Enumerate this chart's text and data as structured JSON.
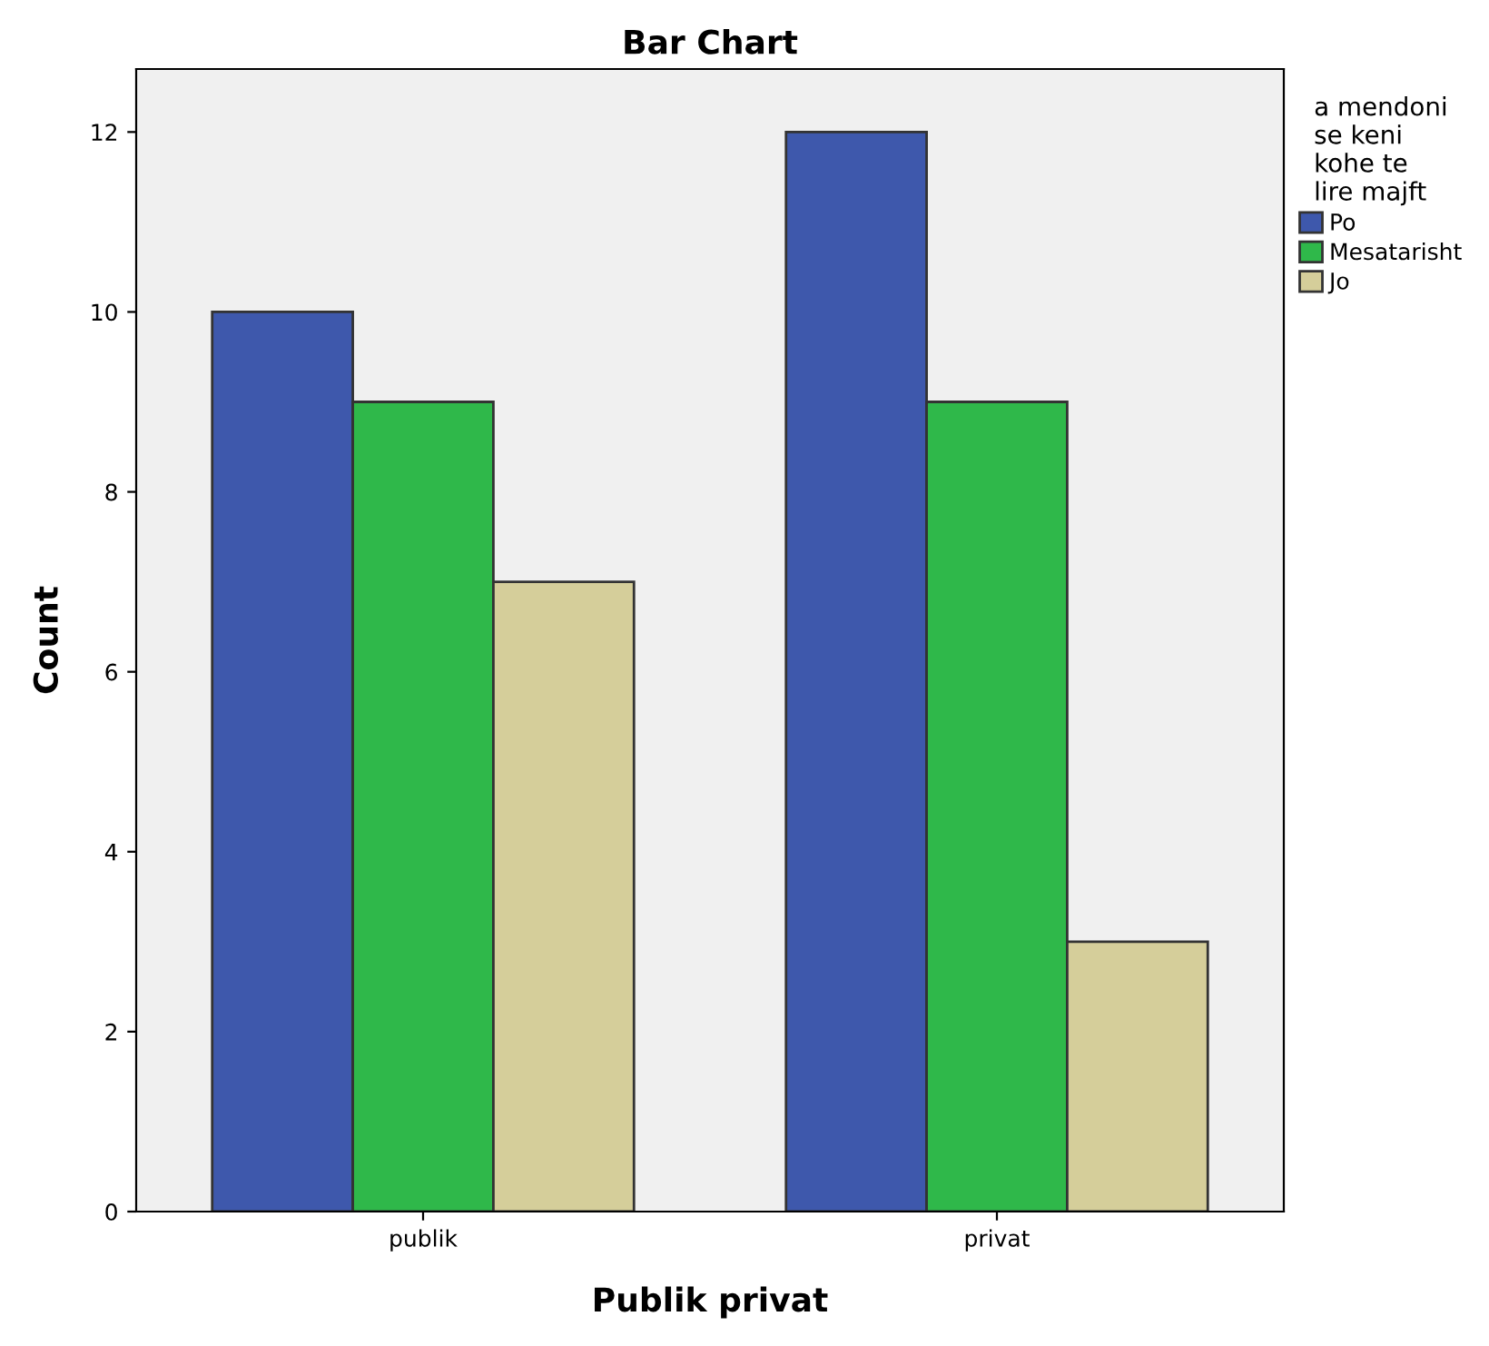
{
  "chart_data": {
    "type": "bar",
    "title": "Bar Chart",
    "xlabel": "Publik privat",
    "ylabel": "Count",
    "legend_title": "a mendoni se keni kohe te lire majft",
    "categories": [
      "publik",
      "privat"
    ],
    "series": [
      {
        "name": "Po",
        "color": "#3e58ac",
        "values": [
          10,
          12
        ]
      },
      {
        "name": "Mesatarisht",
        "color": "#2fb84a",
        "values": [
          9,
          9
        ]
      },
      {
        "name": "Jo",
        "color": "#d5ce9a",
        "values": [
          7,
          3
        ]
      }
    ],
    "ylim": [
      0,
      12.7
    ],
    "yticks": [
      0,
      2,
      4,
      6,
      8,
      10,
      12
    ],
    "grid": false,
    "legend": "right"
  }
}
